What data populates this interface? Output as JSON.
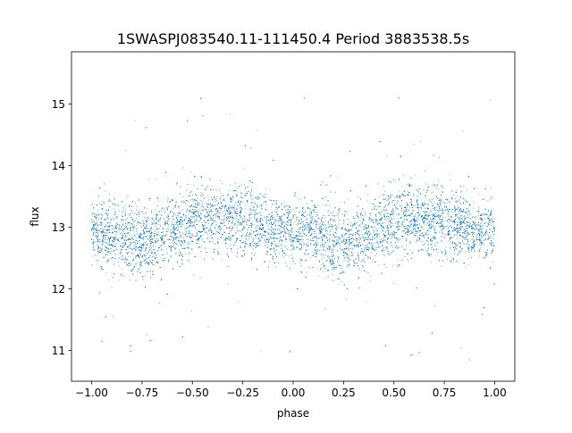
{
  "chart_data": {
    "type": "scatter",
    "title": "1SWASPJ083540.11-111450.4 Period 3883538.5s",
    "xlabel": "phase",
    "ylabel": "flux",
    "xlim": [
      -1.1,
      1.1
    ],
    "ylim": [
      10.5,
      15.85
    ],
    "xticks": [
      -1.0,
      -0.75,
      -0.5,
      -0.25,
      0.0,
      0.25,
      0.5,
      0.75,
      1.0
    ],
    "xtick_labels": [
      "−1.00",
      "−0.75",
      "−0.50",
      "−0.25",
      "0.00",
      "0.25",
      "0.50",
      "0.75",
      "1.00"
    ],
    "yticks": [
      11,
      12,
      13,
      14,
      15
    ],
    "ytick_labels": [
      "11",
      "12",
      "13",
      "14",
      "15"
    ],
    "grid": false,
    "legend": "none",
    "point_color": "#1f77b4",
    "series": [
      {
        "profile_x": [
          -1.0,
          -0.9,
          -0.8,
          -0.7,
          -0.6,
          -0.5,
          -0.4,
          -0.3,
          -0.2,
          -0.1,
          0.0,
          0.1,
          0.2,
          0.3,
          0.4,
          0.5,
          0.6,
          0.7,
          0.8,
          0.9,
          1.0
        ],
        "profile_median": [
          12.95,
          12.9,
          12.75,
          12.8,
          12.95,
          13.1,
          13.15,
          13.1,
          13.05,
          12.95,
          12.95,
          12.9,
          12.75,
          12.8,
          12.95,
          13.1,
          13.15,
          13.1,
          13.05,
          12.95,
          12.95
        ],
        "profile_spread": [
          0.45,
          0.5,
          0.55,
          0.5,
          0.5,
          0.55,
          0.5,
          0.5,
          0.5,
          0.45,
          0.45,
          0.5,
          0.55,
          0.5,
          0.5,
          0.55,
          0.5,
          0.5,
          0.5,
          0.45,
          0.45
        ],
        "approx_points": 24000
      }
    ]
  }
}
